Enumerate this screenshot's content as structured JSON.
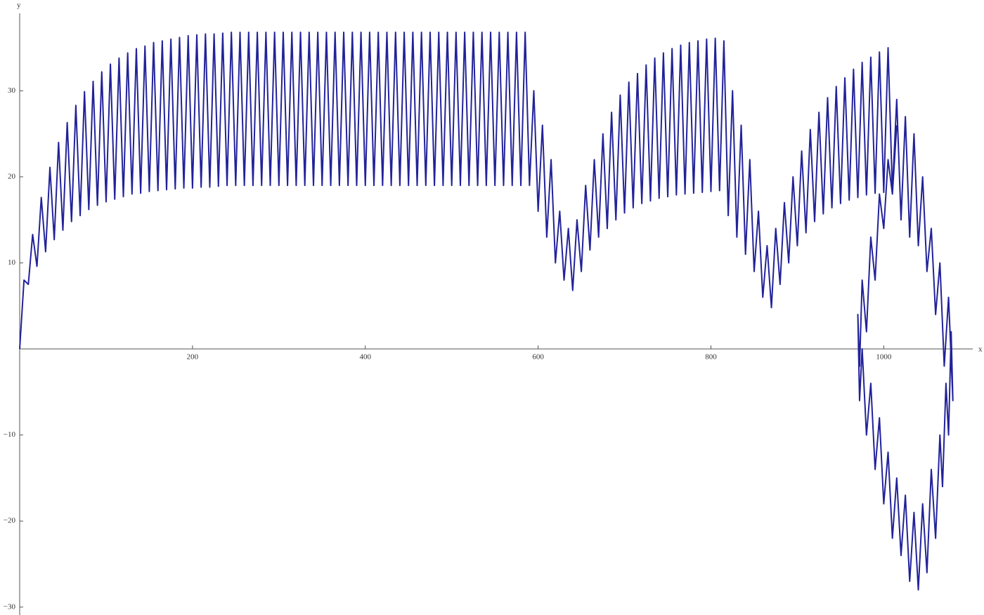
{
  "chart_data": {
    "type": "line",
    "x_label": "x",
    "y_label": "y",
    "xlim": [
      0,
      1103
    ],
    "ylim": [
      -31,
      39
    ],
    "xticks": [
      200,
      400,
      600,
      800,
      1000
    ],
    "yticks": [
      {
        "value": -30,
        "label": "−30"
      },
      {
        "value": -20,
        "label": "−20"
      },
      {
        "value": -10,
        "label": "−10"
      },
      10,
      20,
      30
    ],
    "series": [
      {
        "color": "#22229a",
        "x": [
          0,
          5,
          10,
          15,
          20,
          25,
          30,
          35,
          40,
          45,
          50,
          55,
          60,
          65,
          70,
          75,
          80,
          85,
          90,
          95,
          100,
          105,
          110,
          115,
          120,
          125,
          130,
          135,
          140,
          145,
          150,
          155,
          160,
          165,
          170,
          175,
          180,
          185,
          190,
          195,
          200,
          205,
          210,
          215,
          220,
          225,
          230,
          235,
          240,
          245,
          250,
          255,
          260,
          265,
          270,
          275,
          280,
          285,
          290,
          295,
          300,
          305,
          310,
          315,
          320,
          325,
          330,
          335,
          340,
          345,
          350,
          355,
          360,
          365,
          370,
          375,
          380,
          385,
          390,
          395,
          400,
          405,
          410,
          415,
          420,
          425,
          430,
          435,
          440,
          445,
          450,
          455,
          460,
          465,
          470,
          475,
          480,
          485,
          490,
          495,
          500,
          505,
          510,
          515,
          520,
          525,
          530,
          535,
          540,
          545,
          550,
          555,
          560,
          565,
          570,
          575,
          580,
          585,
          590,
          595,
          600,
          605,
          610,
          615,
          620,
          625,
          630,
          635,
          640,
          645,
          650,
          655,
          660,
          665,
          670,
          675,
          680,
          685,
          690,
          695,
          700,
          705,
          710,
          715,
          720,
          725,
          730,
          735,
          740,
          745,
          750,
          755,
          760,
          765,
          770,
          775,
          780,
          785,
          790,
          795,
          800,
          805,
          810,
          815,
          820,
          825,
          830,
          835,
          840,
          845,
          850,
          855,
          860,
          865,
          870,
          875,
          880,
          885,
          890,
          895,
          900,
          905,
          910,
          915,
          920,
          925,
          930,
          935,
          940,
          945,
          950,
          955,
          960,
          965,
          970,
          975,
          980,
          985,
          990,
          995,
          1000,
          1005,
          1010,
          1015,
          1020,
          1025,
          1030,
          1035,
          1040,
          1045,
          1050,
          1055,
          1060,
          1065,
          1070,
          1075,
          1080,
          1078,
          1075,
          1072,
          1068,
          1065,
          1060,
          1055,
          1050,
          1045,
          1040,
          1035,
          1030,
          1025,
          1020,
          1015,
          1010,
          1005,
          1000,
          995,
          990,
          985,
          980,
          975,
          972,
          970,
          972,
          975,
          980,
          985,
          990,
          995,
          1000,
          1005,
          1010,
          1015
        ],
        "values": [
          0,
          8.0,
          7.5,
          13.3,
          9.6,
          17.6,
          11.3,
          21.1,
          12.7,
          24.0,
          13.8,
          26.3,
          14.8,
          28.3,
          15.5,
          29.9,
          16.2,
          31.1,
          16.7,
          32.2,
          17.1,
          33.1,
          17.4,
          33.8,
          17.7,
          34.4,
          18.0,
          34.9,
          18.1,
          35.2,
          18.3,
          35.6,
          18.4,
          35.8,
          18.5,
          36.0,
          18.6,
          36.2,
          18.7,
          36.4,
          18.7,
          36.5,
          18.8,
          36.6,
          18.8,
          36.6,
          18.9,
          36.7,
          19,
          36.8,
          19,
          36.8,
          19,
          36.8,
          19,
          36.8,
          19,
          36.8,
          19,
          36.8,
          19,
          36.8,
          19,
          36.8,
          19,
          36.8,
          19,
          36.8,
          19,
          36.8,
          19,
          36.8,
          19,
          36.8,
          19,
          36.8,
          19,
          36.8,
          19,
          36.8,
          19,
          36.8,
          19,
          36.8,
          19,
          36.8,
          19,
          36.8,
          19,
          36.8,
          19,
          36.8,
          19,
          36.8,
          19,
          36.8,
          19,
          36.8,
          19,
          36.8,
          19,
          36.8,
          19,
          36.8,
          19,
          36.8,
          19,
          36.8,
          19,
          36.8,
          19,
          36.8,
          19,
          36.8,
          19,
          36.8,
          19,
          36.8,
          19,
          30,
          16,
          26,
          13,
          22,
          10,
          16,
          8,
          14,
          6.8,
          15,
          9,
          19,
          11.5,
          22,
          13,
          25,
          14,
          27.5,
          15,
          29.5,
          15.8,
          31,
          16.4,
          32,
          16.9,
          33,
          17.2,
          33.8,
          17.5,
          34.4,
          17.7,
          34.9,
          17.9,
          35.3,
          18.0,
          35.6,
          18.1,
          35.8,
          18.2,
          36.0,
          18.3,
          36.1,
          18.4,
          35.8,
          15.5,
          30,
          13,
          26,
          11,
          22,
          9,
          16,
          6,
          12,
          4.8,
          14,
          7.5,
          17,
          10,
          20,
          12,
          23,
          13.5,
          25.5,
          14.8,
          27.5,
          15.7,
          29.2,
          16.4,
          30.5,
          16.9,
          31.5,
          17.3,
          32.5,
          17.6,
          33.3,
          17.9,
          33.9,
          18.1,
          34.5,
          18.2,
          35.0,
          18.3,
          29,
          15,
          27,
          13,
          25,
          12,
          20,
          9,
          14,
          4,
          10,
          -2,
          6,
          -6,
          2,
          -10,
          -4,
          -16,
          -10,
          -22,
          -14,
          -26,
          -18,
          -28,
          -19,
          -27,
          -17,
          -24,
          -15,
          -22,
          -12,
          -18,
          -8,
          -14,
          -4,
          -10,
          0,
          -6,
          4,
          -2,
          8,
          2,
          13,
          8,
          18,
          14,
          22,
          18,
          26
        ]
      }
    ]
  }
}
